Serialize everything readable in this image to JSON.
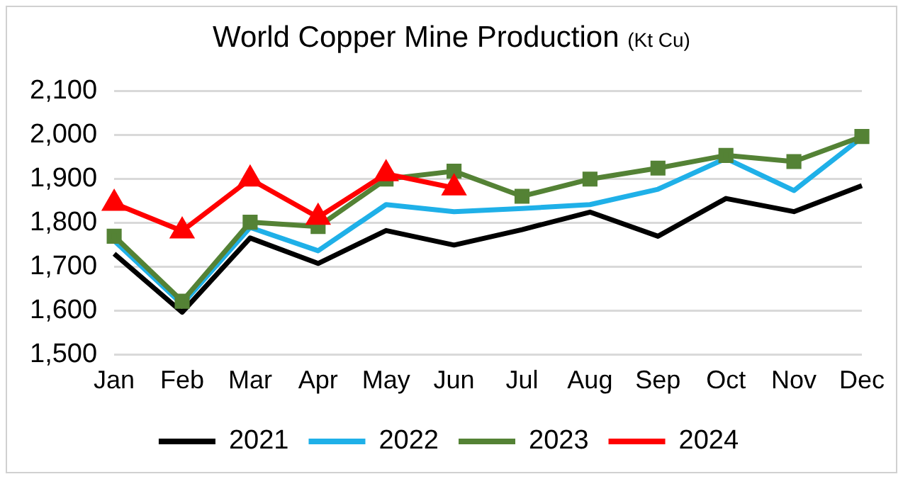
{
  "chart_data": {
    "type": "line",
    "title": "World Copper Mine Production",
    "subtitle": "(Kt Cu)",
    "categories": [
      "Jan",
      "Feb",
      "Mar",
      "Apr",
      "May",
      "Jun",
      "Jul",
      "Aug",
      "Sep",
      "Oct",
      "Nov",
      "Dec"
    ],
    "series": [
      {
        "name": "2021",
        "color": "#000000",
        "marker": "none",
        "values": [
          1730,
          1597,
          1766,
          1708,
          1783,
          1750,
          1785,
          1825,
          1770,
          1856,
          1826,
          1885
        ]
      },
      {
        "name": "2022",
        "color": "#1fb0e8",
        "marker": "none",
        "values": [
          1760,
          1615,
          1790,
          1737,
          1842,
          1826,
          1833,
          1842,
          1877,
          1947,
          1874,
          1995
        ]
      },
      {
        "name": "2023",
        "color": "#548235",
        "marker": "square",
        "values": [
          1770,
          1622,
          1802,
          1792,
          1900,
          1918,
          1861,
          1900,
          1925,
          1954,
          1940,
          1997
        ]
      },
      {
        "name": "2024",
        "color": "#ff0000",
        "marker": "triangle",
        "values": [
          1845,
          1782,
          1900,
          1813,
          1912,
          1880,
          null,
          null,
          null,
          null,
          null,
          null
        ]
      }
    ],
    "ylim": [
      1500,
      2100
    ],
    "yticks": [
      {
        "value": 1500,
        "label": "1,500"
      },
      {
        "value": 1600,
        "label": "1,600"
      },
      {
        "value": 1700,
        "label": "1,700"
      },
      {
        "value": 1800,
        "label": "1,800"
      },
      {
        "value": 1900,
        "label": "1,900"
      },
      {
        "value": 2000,
        "label": "2,000"
      },
      {
        "value": 2100,
        "label": "2,100"
      }
    ],
    "grid": "y",
    "legend": "bottom",
    "line_style": "solid"
  }
}
